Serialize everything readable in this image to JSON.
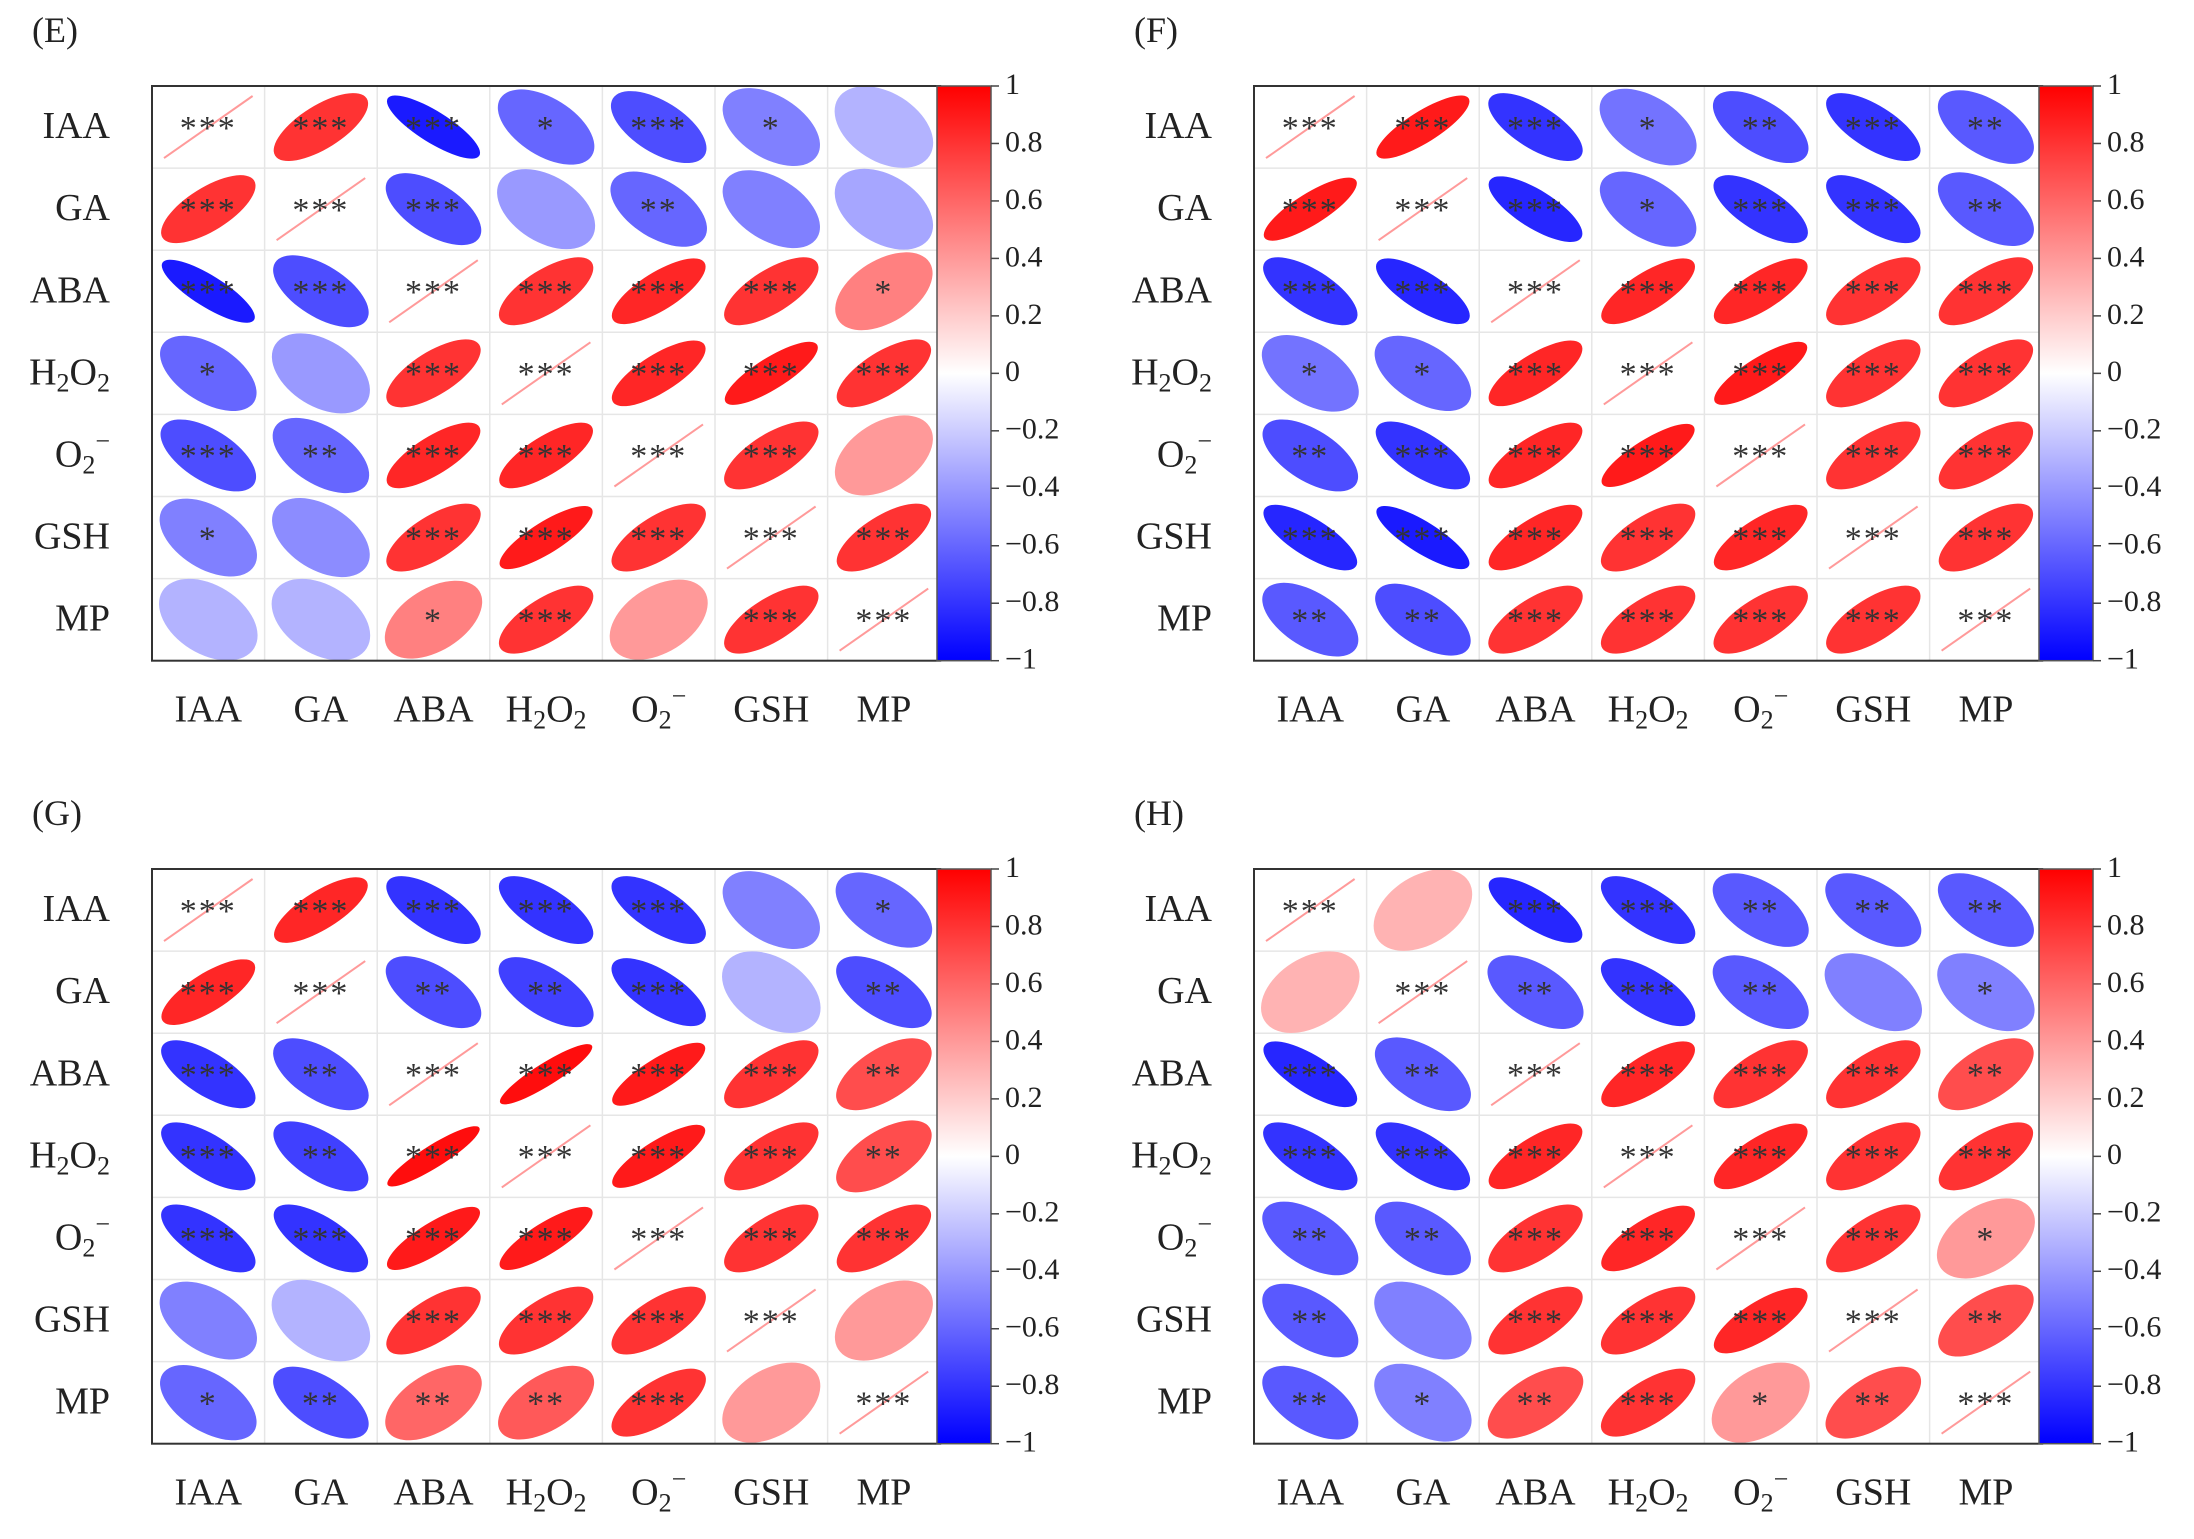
{
  "figure": {
    "variables": [
      "IAA",
      "GA",
      "ABA",
      "H2O2",
      "O2-",
      "GSH",
      "MP"
    ],
    "var_labels": [
      {
        "main": "IAA"
      },
      {
        "main": "GA"
      },
      {
        "main": "ABA"
      },
      {
        "main": "H",
        "sub1": "2",
        "mid": "O",
        "sub2": "2"
      },
      {
        "main": "O",
        "sub1": "2",
        "sup": "−"
      },
      {
        "main": "GSH"
      },
      {
        "main": "MP"
      }
    ],
    "colorbar": {
      "ticks": [
        "1",
        "0.8",
        "0.6",
        "0.4",
        "0.2",
        "0",
        "−0.2",
        "−0.4",
        "−0.6",
        "−0.8",
        "−1"
      ],
      "tick_values": [
        1,
        0.8,
        0.6,
        0.4,
        0.2,
        0,
        -0.2,
        -0.4,
        -0.6,
        -0.8,
        -1
      ],
      "color_positive": "#ff0000",
      "color_zero": "#ffffff",
      "color_negative": "#0000ff"
    }
  },
  "chart_data": [
    {
      "type": "heatmap",
      "panel": "(E)",
      "title": "(E)",
      "variables": [
        "IAA",
        "GA",
        "ABA",
        "H2O2",
        "O2-",
        "GSH",
        "MP"
      ],
      "value_range": [
        -1,
        1
      ],
      "correlations": [
        [
          1,
          0.8,
          -0.9,
          -0.6,
          -0.7,
          -0.5,
          -0.3
        ],
        [
          0.8,
          1,
          -0.7,
          -0.4,
          -0.6,
          -0.5,
          -0.35
        ],
        [
          -0.9,
          -0.7,
          1,
          0.8,
          0.85,
          0.8,
          0.5
        ],
        [
          -0.6,
          -0.4,
          0.8,
          1,
          0.85,
          0.9,
          0.8
        ],
        [
          -0.7,
          -0.6,
          0.85,
          0.85,
          1,
          0.8,
          0.4
        ],
        [
          -0.5,
          -0.45,
          0.8,
          0.9,
          0.8,
          1,
          0.8
        ],
        [
          -0.3,
          -0.3,
          0.5,
          0.8,
          0.4,
          0.8,
          1
        ]
      ],
      "significance": [
        [
          "***",
          "***",
          "***",
          "*",
          "***",
          "*",
          ""
        ],
        [
          "***",
          "***",
          "***",
          "",
          "**",
          "",
          ""
        ],
        [
          "***",
          "***",
          "***",
          "***",
          "***",
          "***",
          "*"
        ],
        [
          "*",
          "",
          "***",
          "***",
          "***",
          "***",
          "***"
        ],
        [
          "***",
          "**",
          "***",
          "***",
          "***",
          "***",
          ""
        ],
        [
          "*",
          "",
          "***",
          "***",
          "***",
          "***",
          "***"
        ],
        [
          "",
          "",
          "*",
          "***",
          "",
          "***",
          "***"
        ]
      ]
    },
    {
      "type": "heatmap",
      "panel": "(F)",
      "title": "(F)",
      "variables": [
        "IAA",
        "GA",
        "ABA",
        "H2O2",
        "O2-",
        "GSH",
        "MP"
      ],
      "value_range": [
        -1,
        1
      ],
      "correlations": [
        [
          1,
          0.9,
          -0.8,
          -0.55,
          -0.7,
          -0.8,
          -0.65
        ],
        [
          0.9,
          1,
          -0.85,
          -0.6,
          -0.8,
          -0.8,
          -0.65
        ],
        [
          -0.8,
          -0.85,
          1,
          0.85,
          0.85,
          0.8,
          0.8
        ],
        [
          -0.55,
          -0.6,
          0.85,
          1,
          0.9,
          0.8,
          0.8
        ],
        [
          -0.7,
          -0.8,
          0.85,
          0.9,
          1,
          0.8,
          0.8
        ],
        [
          -0.85,
          -0.9,
          0.85,
          0.8,
          0.85,
          1,
          0.8
        ],
        [
          -0.65,
          -0.7,
          0.8,
          0.8,
          0.8,
          0.8,
          1
        ]
      ],
      "significance": [
        [
          "***",
          "***",
          "***",
          "*",
          "**",
          "***",
          "**"
        ],
        [
          "***",
          "***",
          "***",
          "*",
          "***",
          "***",
          "**"
        ],
        [
          "***",
          "***",
          "***",
          "***",
          "***",
          "***",
          "***"
        ],
        [
          "*",
          "*",
          "***",
          "***",
          "***",
          "***",
          "***"
        ],
        [
          "**",
          "***",
          "***",
          "***",
          "***",
          "***",
          "***"
        ],
        [
          "***",
          "***",
          "***",
          "***",
          "***",
          "***",
          "***"
        ],
        [
          "**",
          "**",
          "***",
          "***",
          "***",
          "***",
          "***"
        ]
      ]
    },
    {
      "type": "heatmap",
      "panel": "(G)",
      "title": "(G)",
      "variables": [
        "IAA",
        "GA",
        "ABA",
        "H2O2",
        "O2-",
        "GSH",
        "MP"
      ],
      "value_range": [
        -1,
        1
      ],
      "correlations": [
        [
          1,
          0.85,
          -0.8,
          -0.8,
          -0.8,
          -0.5,
          -0.6
        ],
        [
          0.85,
          1,
          -0.7,
          -0.75,
          -0.8,
          -0.3,
          -0.7
        ],
        [
          -0.8,
          -0.7,
          1,
          0.95,
          0.9,
          0.8,
          0.7
        ],
        [
          -0.8,
          -0.75,
          0.95,
          1,
          0.9,
          0.8,
          0.7
        ],
        [
          -0.8,
          -0.8,
          0.9,
          0.9,
          1,
          0.8,
          0.8
        ],
        [
          -0.5,
          -0.3,
          0.8,
          0.8,
          0.8,
          1,
          0.4
        ],
        [
          -0.6,
          -0.7,
          0.6,
          0.65,
          0.8,
          0.4,
          1
        ]
      ],
      "significance": [
        [
          "***",
          "***",
          "***",
          "***",
          "***",
          "",
          "*"
        ],
        [
          "***",
          "***",
          "**",
          "**",
          "***",
          "",
          "**"
        ],
        [
          "***",
          "**",
          "***",
          "***",
          "***",
          "***",
          "**"
        ],
        [
          "***",
          "**",
          "***",
          "***",
          "***",
          "***",
          "**"
        ],
        [
          "***",
          "***",
          "***",
          "***",
          "***",
          "***",
          "***"
        ],
        [
          "",
          "",
          "***",
          "***",
          "***",
          "***",
          ""
        ],
        [
          "*",
          "**",
          "**",
          "**",
          "***",
          "",
          "***"
        ]
      ]
    },
    {
      "type": "heatmap",
      "panel": "(H)",
      "title": "(H)",
      "variables": [
        "IAA",
        "GA",
        "ABA",
        "H2O2",
        "O2-",
        "GSH",
        "MP"
      ],
      "value_range": [
        -1,
        1
      ],
      "correlations": [
        [
          1,
          0.3,
          -0.85,
          -0.8,
          -0.65,
          -0.65,
          -0.65
        ],
        [
          0.3,
          1,
          -0.65,
          -0.8,
          -0.65,
          -0.5,
          -0.5
        ],
        [
          -0.85,
          -0.65,
          1,
          0.85,
          0.8,
          0.8,
          0.7
        ],
        [
          -0.8,
          -0.8,
          0.85,
          1,
          0.85,
          0.8,
          0.8
        ],
        [
          -0.65,
          -0.65,
          0.8,
          0.85,
          1,
          0.8,
          0.4
        ],
        [
          -0.65,
          -0.5,
          0.8,
          0.8,
          0.85,
          1,
          0.7
        ],
        [
          -0.65,
          -0.5,
          0.7,
          0.8,
          0.4,
          0.7,
          1
        ]
      ],
      "significance": [
        [
          "***",
          "",
          "***",
          "***",
          "**",
          "**",
          "**"
        ],
        [
          "",
          "***",
          "**",
          "***",
          "**",
          "",
          "*"
        ],
        [
          "***",
          "**",
          "***",
          "***",
          "***",
          "***",
          "**"
        ],
        [
          "***",
          "***",
          "***",
          "***",
          "***",
          "***",
          "***"
        ],
        [
          "**",
          "**",
          "***",
          "***",
          "***",
          "***",
          "*"
        ],
        [
          "**",
          "",
          "***",
          "***",
          "***",
          "***",
          "**"
        ],
        [
          "**",
          "*",
          "**",
          "***",
          "*",
          "**",
          "***"
        ]
      ]
    }
  ]
}
